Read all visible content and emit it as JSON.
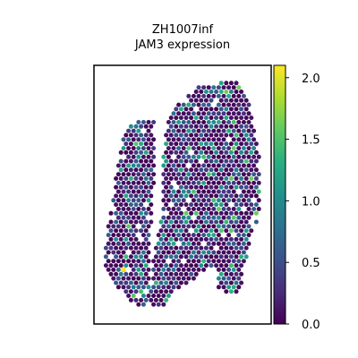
{
  "chart_data": {
    "type": "scatter",
    "title": "ZH1007inf\nJAM3 expression",
    "title_lines": [
      "ZH1007inf",
      "JAM3 expression"
    ],
    "xlabel": "",
    "ylabel": "",
    "grid": false,
    "legend": "none",
    "colorbar": {
      "colormap": "viridis",
      "range": [
        0.0,
        2.1
      ],
      "ticks": [
        0.0,
        0.5,
        1.0,
        1.5,
        2.0
      ],
      "tick_labels": [
        "0.0",
        "0.5",
        "1.0",
        "1.5",
        "2.0"
      ],
      "placement": "right"
    },
    "value_range": [
      0.0,
      2.1
    ],
    "description_of_data": "Spatial spots colored by JAM3 expression; two tissue regions (left narrow strip and right larger block); most spots low (0.0-0.6), scattered spots near 1.0-1.5, one spot near 2.1"
  }
}
